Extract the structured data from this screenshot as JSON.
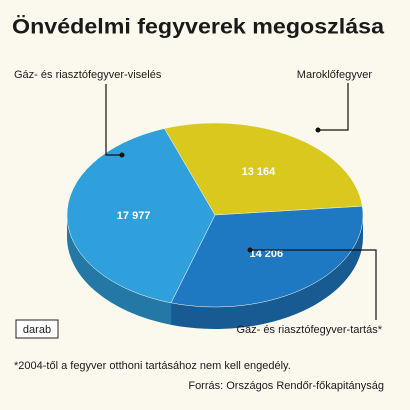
{
  "chart_data": {
    "type": "pie",
    "title": "Önvédelmi fegyverek megoszlása",
    "categories": [
      "Maroklőfegyver",
      "Gáz- és riasztófegyver-tartás*",
      "Gáz- és riasztófegyver-viselés"
    ],
    "values": [
      13164,
      14206,
      17977
    ],
    "value_labels": [
      "13 164",
      "14 206",
      "17 977"
    ],
    "colors": [
      "#d9c91f",
      "#1f79c2",
      "#2fa0dc"
    ],
    "unit": "darab",
    "footnote": "*2004-től a fegyver otthoni tartásához nem kell engedély.",
    "source": "Forrás: Országos Rendőr-főkapitányság"
  }
}
